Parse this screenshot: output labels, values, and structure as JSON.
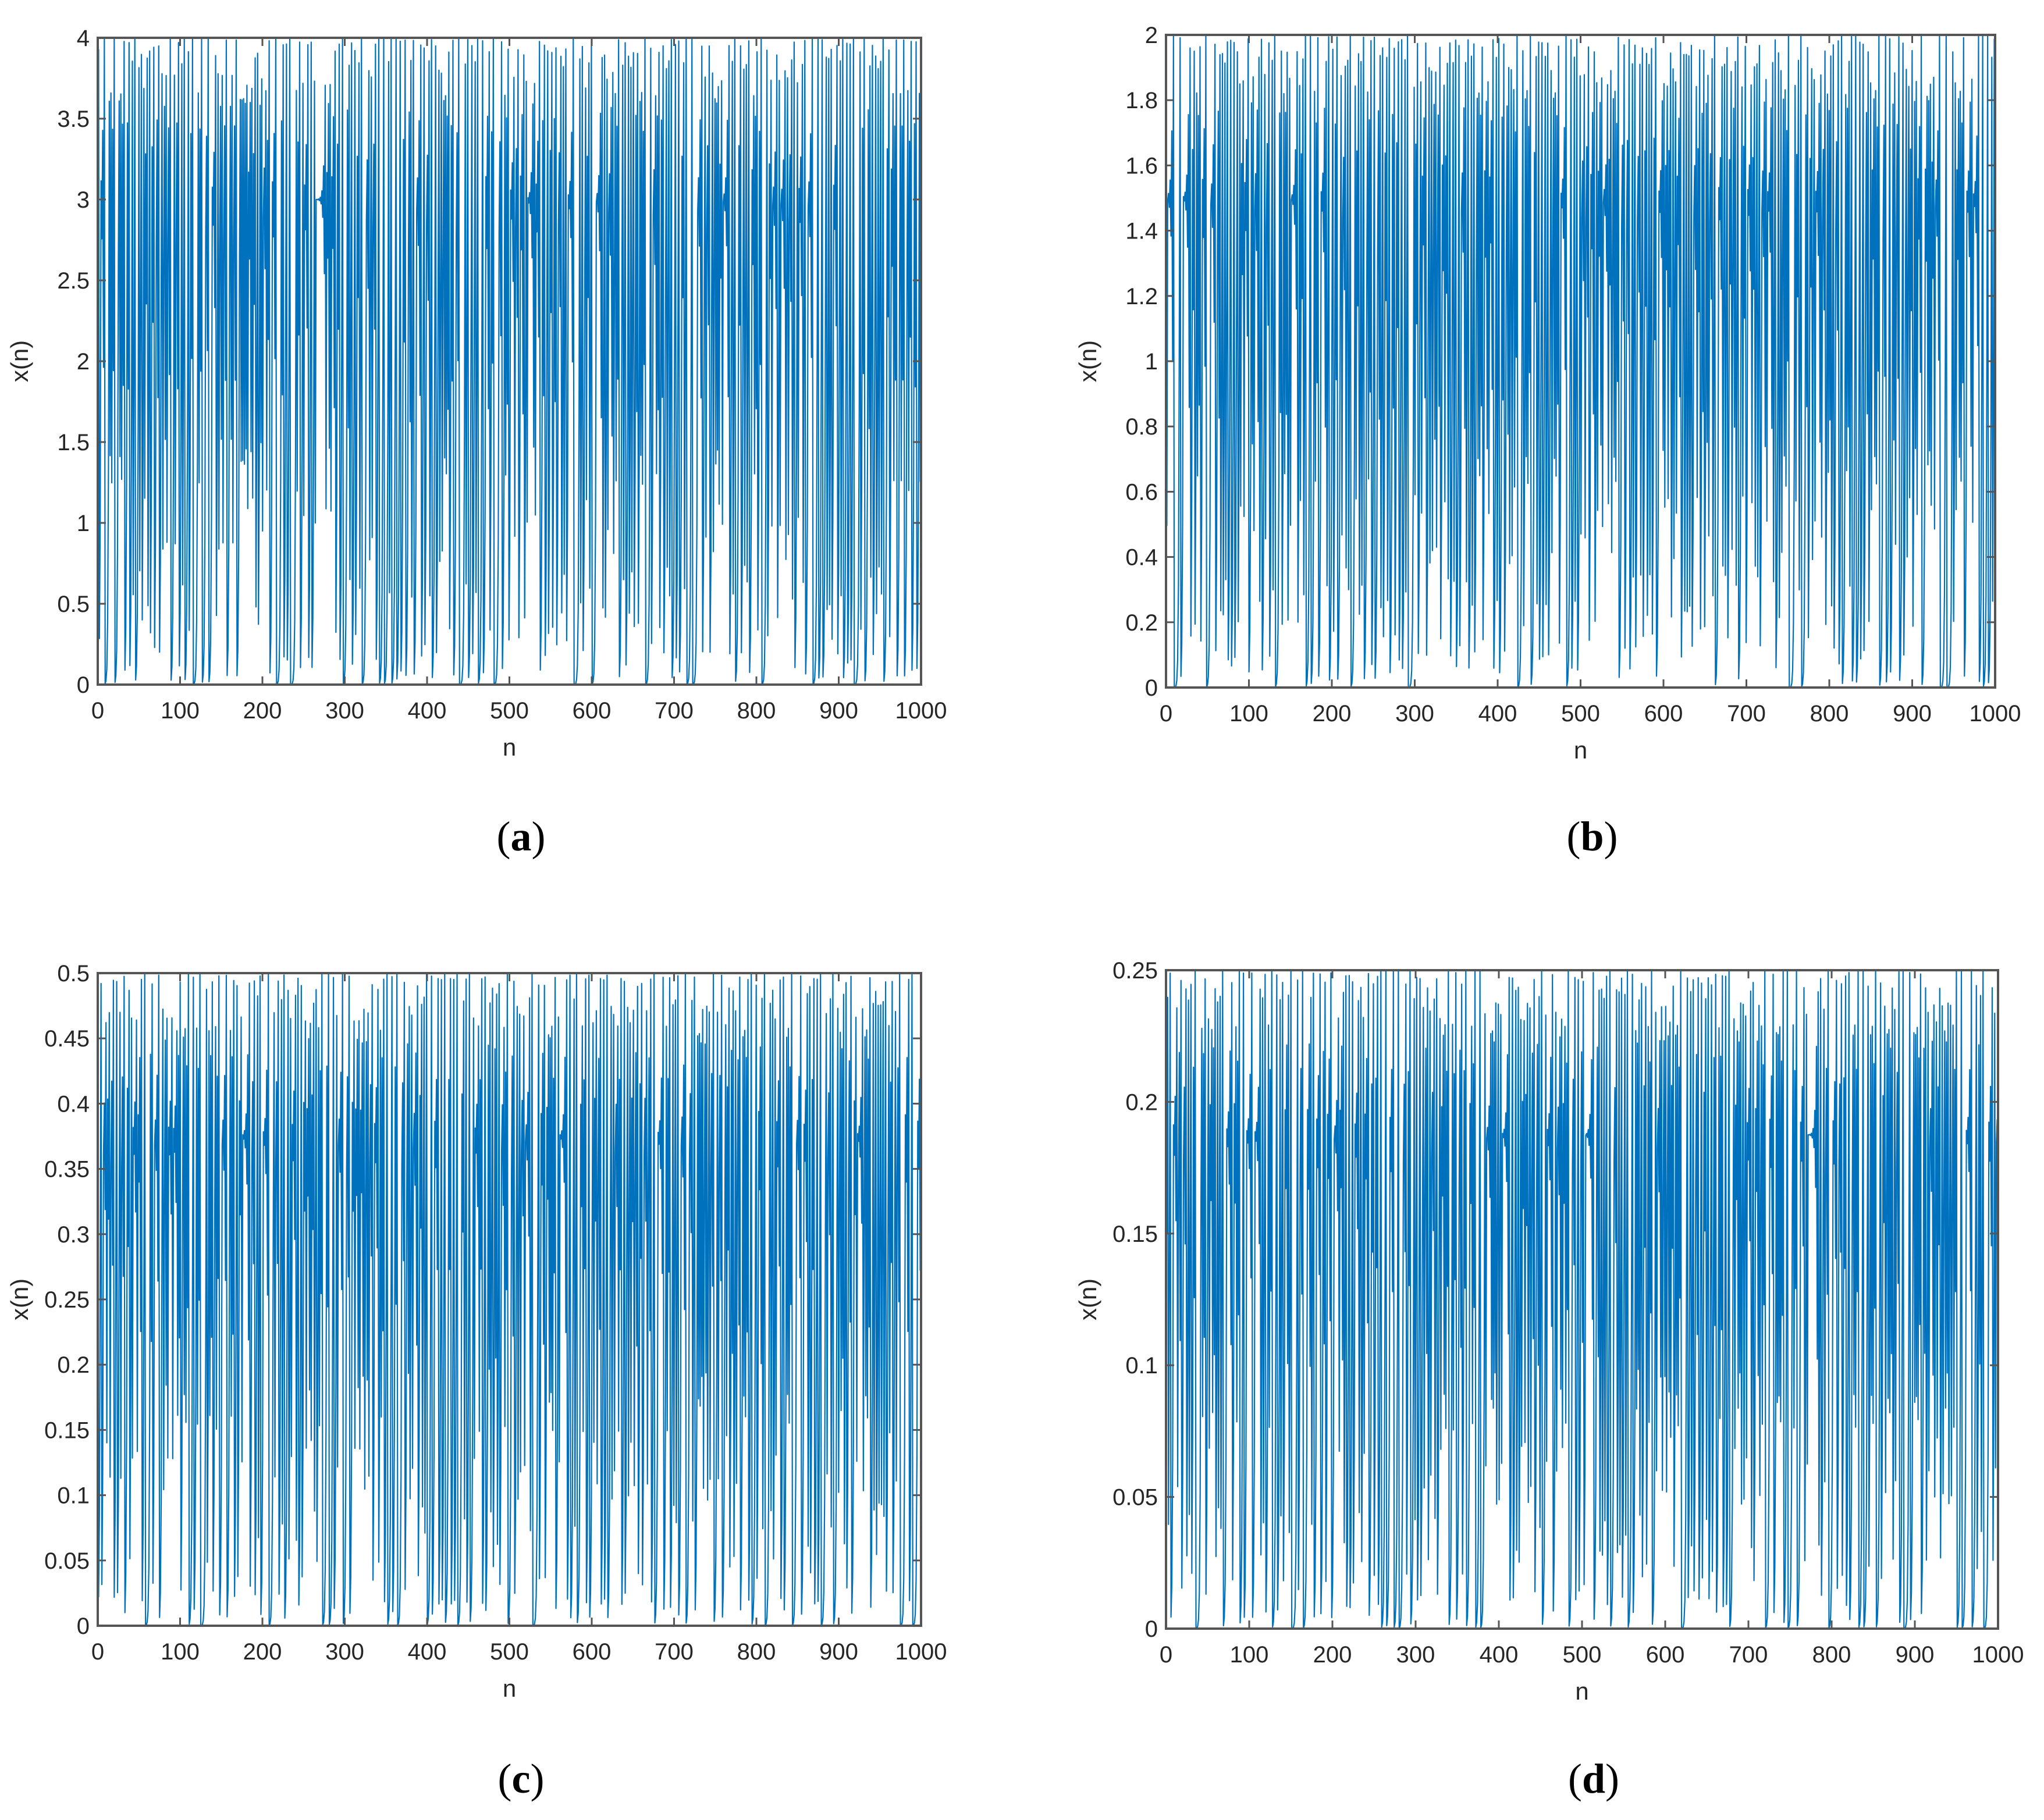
{
  "chart_data": [
    {
      "type": "line",
      "panel_label": "a",
      "xlabel": "n",
      "ylabel": "x(n)",
      "xlim": [
        0,
        1000
      ],
      "ylim": [
        0,
        4
      ],
      "xticks": [
        "0",
        "100",
        "200",
        "300",
        "400",
        "500",
        "600",
        "700",
        "800",
        "900",
        "1000"
      ],
      "yticks": [
        "0",
        "0.5",
        "1",
        "1.5",
        "2",
        "2.5",
        "3",
        "3.5",
        "4"
      ],
      "series_generator": {
        "kind": "chaotic_map",
        "n_points": 1000,
        "ymax": 4,
        "seed": 0.1234
      },
      "line_color": "#0072BD"
    },
    {
      "type": "line",
      "panel_label": "b",
      "xlabel": "n",
      "ylabel": "x(n)",
      "xlim": [
        0,
        1000
      ],
      "ylim": [
        0,
        2
      ],
      "xticks": [
        "0",
        "100",
        "200",
        "300",
        "400",
        "500",
        "600",
        "700",
        "800",
        "900",
        "1000"
      ],
      "yticks": [
        "0",
        "0.2",
        "0.4",
        "0.6",
        "0.8",
        "1",
        "1.2",
        "1.4",
        "1.6",
        "1.8",
        "2"
      ],
      "series_generator": {
        "kind": "chaotic_map",
        "n_points": 1000,
        "ymax": 2,
        "seed": 0.3711
      },
      "line_color": "#0072BD"
    },
    {
      "type": "line",
      "panel_label": "c",
      "xlabel": "n",
      "ylabel": "x(n)",
      "xlim": [
        0,
        1000
      ],
      "ylim": [
        0,
        0.5
      ],
      "xticks": [
        "0",
        "100",
        "200",
        "300",
        "400",
        "500",
        "600",
        "700",
        "800",
        "900",
        "1000"
      ],
      "yticks": [
        "0",
        "0.05",
        "0.1",
        "0.15",
        "0.2",
        "0.25",
        "0.3",
        "0.35",
        "0.4",
        "0.45",
        "0.5"
      ],
      "series_generator": {
        "kind": "chaotic_map",
        "n_points": 1000,
        "ymax": 0.5,
        "seed": 0.5529
      },
      "line_color": "#0072BD"
    },
    {
      "type": "line",
      "panel_label": "d",
      "xlabel": "n",
      "ylabel": "x(n)",
      "xlim": [
        0,
        1000
      ],
      "ylim": [
        0,
        0.25
      ],
      "xticks": [
        "0",
        "100",
        "200",
        "300",
        "400",
        "500",
        "600",
        "700",
        "800",
        "900",
        "1000"
      ],
      "yticks": [
        "0",
        "0.05",
        "0.1",
        "0.15",
        "0.2",
        "0.25"
      ],
      "series_generator": {
        "kind": "chaotic_map",
        "n_points": 1000,
        "ymax": 0.25,
        "seed": 0.7147
      },
      "line_color": "#0072BD"
    }
  ]
}
